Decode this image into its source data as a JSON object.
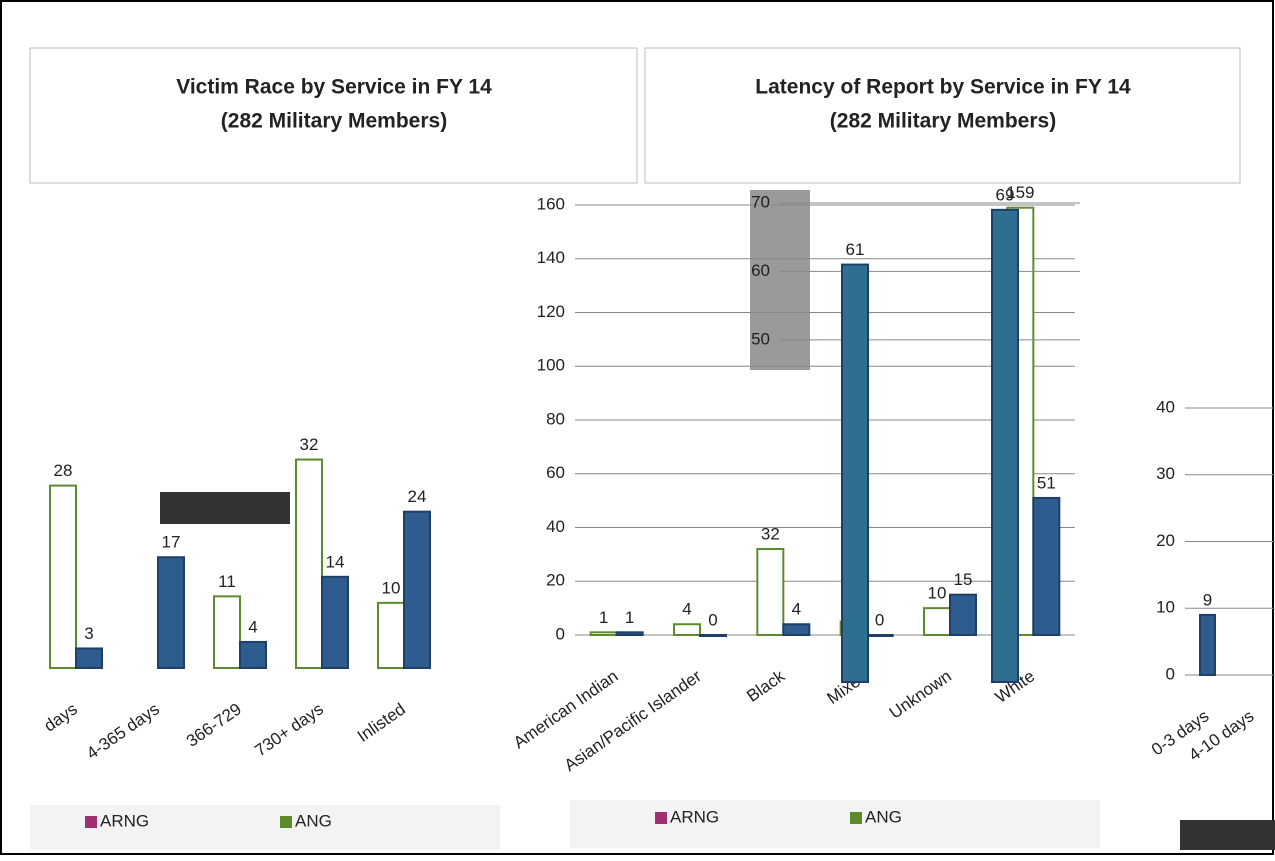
{
  "chart_data": [
    {
      "type": "bar",
      "title": "Victim Race by Service in FY 14",
      "subtitle": "(282 Military Members)",
      "categories": [
        "American Indian",
        "Asian/Pacific Islander",
        "Black",
        "Mixed",
        "Unknown",
        "White"
      ],
      "series": [
        {
          "color": "#ffffff",
          "values": [
            1,
            4,
            32,
            5,
            10,
            159
          ]
        },
        {
          "color": "#2e5c8e",
          "values": [
            1,
            0,
            4,
            0,
            15,
            51
          ]
        }
      ],
      "ylim": [
        0,
        160
      ],
      "yticks": [
        0,
        20,
        40,
        60,
        80,
        100,
        120,
        140,
        160
      ],
      "grid": true
    },
    {
      "type": "bar",
      "title": "Latency of Report by Service in FY 14",
      "subtitle": "(282 Military Members)",
      "categories": [
        "days",
        "4-365 days",
        "366-729",
        "730+ days",
        "Inlisted"
      ],
      "series": [
        {
          "color": "#ffffff",
          "values": [
            28,
            null,
            11,
            32,
            10
          ]
        },
        {
          "color": "#2e5c8e",
          "values": [
            3,
            17,
            4,
            14,
            24
          ]
        }
      ],
      "ylim": [
        0,
        35
      ]
    },
    {
      "type": "bar",
      "categories": [
        "0-3 days",
        "4-10 days"
      ],
      "series": [
        {
          "color": "#2e5c8e",
          "values": [
            9,
            null
          ]
        }
      ],
      "ylim": [
        0,
        40
      ],
      "yticks": [
        0,
        10,
        20,
        30,
        40
      ],
      "grid": true
    },
    {
      "type": "bar",
      "categories": [
        null,
        null
      ],
      "series": [
        {
          "color": "#2e6e8e",
          "values": [
            61,
            69
          ]
        }
      ],
      "ylim": [
        0,
        70
      ],
      "yticks": [
        50,
        60,
        70
      ],
      "grid": true
    }
  ],
  "legend": [
    {
      "name": "ARNG",
      "color": "#a0306f"
    },
    {
      "name": "ANG",
      "color": "#5e8a2e"
    }
  ]
}
